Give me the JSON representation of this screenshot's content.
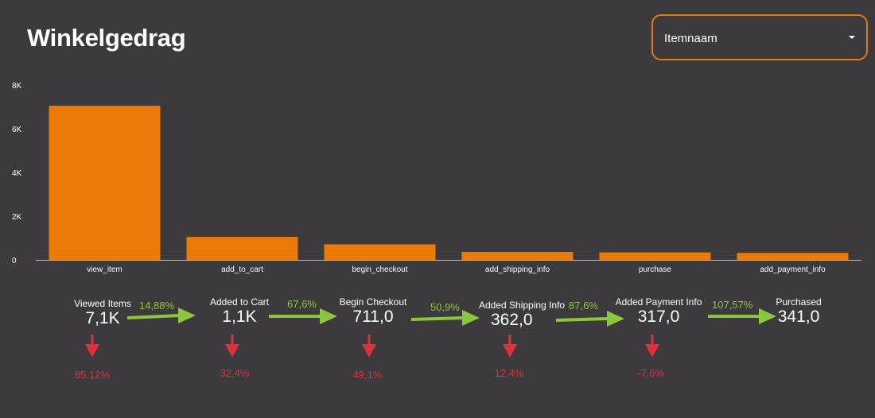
{
  "header": {
    "title": "Winkelgedrag"
  },
  "dropdown": {
    "label": "Itemnaam"
  },
  "chart_data": {
    "type": "bar",
    "categories": [
      "view_item",
      "add_to_cart",
      "begin_checkout",
      "add_shipping_info",
      "purchase",
      "add_payment_info"
    ],
    "values": [
      7050,
      1050,
      711,
      362,
      341,
      317
    ],
    "ylim": [
      0,
      8000
    ],
    "yticks": [
      "0",
      "2K",
      "4K",
      "6K",
      "8K"
    ],
    "ytick_values": [
      0,
      2000,
      4000,
      6000,
      8000
    ],
    "grid": false,
    "bar_color": "#ec7a0a"
  },
  "funnel": {
    "stages": [
      {
        "name": "Viewed Items",
        "value": "7,1K",
        "drop": "85,12%"
      },
      {
        "name": "Added to Cart",
        "value": "1,1K",
        "drop": "32,4%"
      },
      {
        "name": "Begin Checkout",
        "value": "711,0",
        "drop": "49,1%"
      },
      {
        "name": "Added Shipping Info",
        "value": "362,0",
        "drop": "12,4%"
      },
      {
        "name": "Added Payment Info",
        "value": "317,0",
        "drop": "-7,6%"
      },
      {
        "name": "Purchased",
        "value": "341,0"
      }
    ],
    "conversions": [
      "14,88%",
      "67,6%",
      "50,9%",
      "87,6%",
      "107,57%"
    ],
    "arrow_color": "#8cc63f",
    "drop_color": "#e0303c"
  }
}
